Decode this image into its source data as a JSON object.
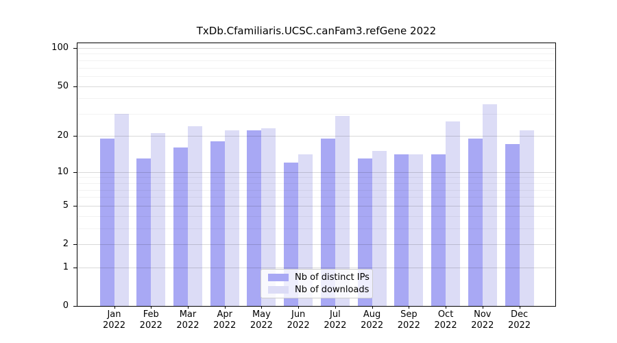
{
  "title": "TxDb.Cfamiliaris.UCSC.canFam3.refGene 2022",
  "legend": {
    "items": [
      {
        "label": "Nb of distinct IPs",
        "color": "#a8a8f4"
      },
      {
        "label": "Nb of downloads",
        "color": "#dcdcf6"
      }
    ]
  },
  "chart_data": {
    "type": "bar",
    "title": "TxDb.Cfamiliaris.UCSC.canFam3.refGene 2022",
    "categories": [
      "Jan",
      "Feb",
      "Mar",
      "Apr",
      "May",
      "Jun",
      "Jul",
      "Aug",
      "Sep",
      "Oct",
      "Nov",
      "Dec"
    ],
    "year_label": "2022",
    "series": [
      {
        "name": "Nb of distinct IPs",
        "color": "#a8a8f4",
        "values": [
          19,
          13,
          16,
          18,
          22,
          12,
          19,
          13,
          14,
          14,
          19,
          17
        ]
      },
      {
        "name": "Nb of downloads",
        "color": "#dcdcf6",
        "values": [
          30,
          21,
          24,
          22,
          23,
          14,
          29,
          15,
          14,
          26,
          36,
          22
        ]
      }
    ],
    "xlabel": "",
    "ylabel": "",
    "y_axis": {
      "scale": "log1p",
      "tick_labels": [
        100,
        50,
        20,
        10,
        5,
        2,
        1,
        0
      ],
      "minor_gridlines": [
        3,
        4,
        6,
        7,
        8,
        9,
        30,
        40,
        60,
        70,
        80,
        90
      ],
      "range_max_visible": 100
    },
    "grid": "on",
    "legend_position": "lower center",
    "colors": {
      "axis": "#000000",
      "background": "#ffffff"
    }
  }
}
